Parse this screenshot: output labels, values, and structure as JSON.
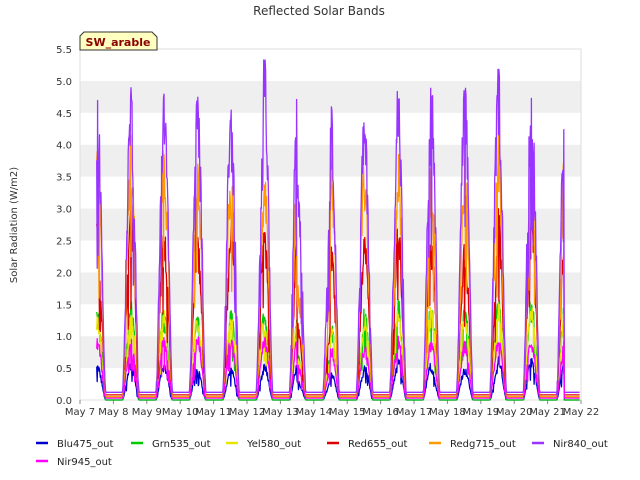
{
  "chart_data": {
    "type": "line",
    "title": "Reflected Solar Bands",
    "xlabel": "",
    "ylabel": "Solar Radiation (W/m2)",
    "badge": "SW_arable",
    "ylim": [
      0.0,
      5.5
    ],
    "xlim": [
      "2023-05-07",
      "2023-05-22"
    ],
    "yticks": [
      "0.0",
      "0.5",
      "1.0",
      "1.5",
      "2.0",
      "2.5",
      "3.0",
      "3.5",
      "4.0",
      "4.5",
      "5.0",
      "5.5"
    ],
    "xticks": [
      "May 7",
      "May 8",
      "May 9",
      "May 10",
      "May 11",
      "May 12",
      "May 13",
      "May 14",
      "May 15",
      "May 16",
      "May 17",
      "May 18",
      "May 19",
      "May 20",
      "May 21",
      "May 22"
    ],
    "grid": true,
    "grid_style": "alternating horizontal bands",
    "legend_position": "bottom",
    "data_start": "2023-05-07T12:00",
    "data_end": "2023-05-21T23:00",
    "day_labels": [
      "May 8",
      "May 9",
      "May 10",
      "May 11",
      "May 12",
      "May 13",
      "May 14",
      "May 15",
      "May 16",
      "May 17",
      "May 18",
      "May 19",
      "May 20",
      "May 21"
    ],
    "night_baselines": {
      "Blu475_out": 0.0,
      "Grn535_out": 0.0,
      "Yel580_out": 0.05,
      "Red655_out": 0.08,
      "Redg715_out": 0.05,
      "Nir840_out": 0.12,
      "Nir945_out": 0.03
    },
    "series": [
      {
        "name": "Blu475_out",
        "color": "#0000cc",
        "daily_peak": [
          0.55,
          0.6,
          0.55,
          0.48,
          0.5,
          0.58,
          0.3,
          0.45,
          0.55,
          0.65,
          0.5,
          0.5,
          0.7,
          0.65
        ]
      },
      {
        "name": "Grn535_out",
        "color": "#00cc00",
        "daily_peak": [
          1.4,
          1.55,
          1.35,
          1.3,
          1.4,
          1.3,
          0.7,
          1.2,
          1.45,
          1.6,
          1.45,
          1.5,
          1.65,
          1.55
        ]
      },
      {
        "name": "Yel580_out",
        "color": "#e6e600",
        "daily_peak": [
          1.3,
          1.45,
          1.4,
          1.25,
          1.3,
          1.25,
          0.65,
          1.15,
          1.35,
          1.5,
          1.4,
          1.35,
          1.55,
          1.45
        ]
      },
      {
        "name": "Red655_out",
        "color": "#dd0000",
        "daily_peak": [
          2.8,
          3.1,
          2.65,
          2.55,
          2.9,
          2.65,
          1.2,
          2.4,
          2.55,
          2.9,
          2.5,
          2.5,
          3.0,
          2.85
        ]
      },
      {
        "name": "Redg715_out",
        "color": "#ff9900",
        "daily_peak": [
          3.9,
          4.15,
          3.85,
          3.7,
          3.5,
          3.7,
          1.8,
          3.8,
          3.5,
          3.9,
          3.5,
          3.85,
          4.15,
          4.0
        ]
      },
      {
        "name": "Nir840_out",
        "color": "#9933ff",
        "daily_peak": [
          4.7,
          4.9,
          4.8,
          4.75,
          4.55,
          5.4,
          3.6,
          4.6,
          4.4,
          4.9,
          4.95,
          4.95,
          5.25,
          4.85
        ]
      },
      {
        "name": "Nir945_out",
        "color": "#ff00ff",
        "daily_peak": [
          0.98,
          1.0,
          0.98,
          1.0,
          0.95,
          1.0,
          0.55,
          0.85,
          0.85,
          1.0,
          0.9,
          0.92,
          1.0,
          0.95
        ]
      }
    ]
  }
}
